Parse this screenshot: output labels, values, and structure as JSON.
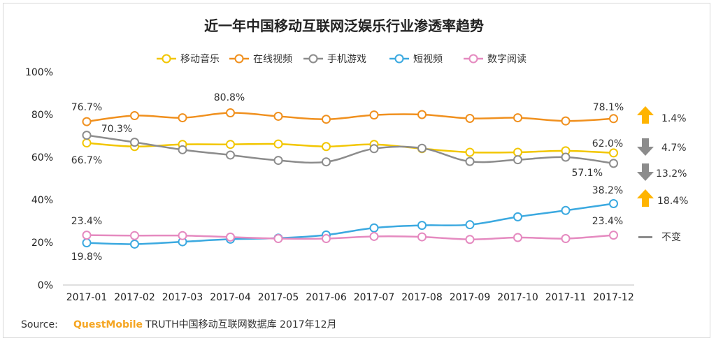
{
  "chart_data": {
    "type": "line",
    "title": "近一年中国移动互联网泛娱乐行业渗透率趋势",
    "categories": [
      "2017-01",
      "2017-02",
      "2017-03",
      "2017-04",
      "2017-05",
      "2017-06",
      "2017-07",
      "2017-08",
      "2017-09",
      "2017-10",
      "2017-11",
      "2017-12"
    ],
    "ylim": [
      0,
      100
    ],
    "yticks": [
      "0%",
      "20%",
      "40%",
      "60%",
      "80%",
      "100%"
    ],
    "legend_position": "top-center",
    "series": [
      {
        "key": "music",
        "name": "移动音乐",
        "color": "#F2C600",
        "values": [
          66.7,
          65.0,
          66.0,
          66.0,
          66.2,
          65.0,
          66.0,
          64.0,
          62.3,
          62.3,
          63.0,
          62.0
        ]
      },
      {
        "key": "video",
        "name": "在线视频",
        "color": "#F0901E",
        "values": [
          76.7,
          79.5,
          78.5,
          80.8,
          79.2,
          77.8,
          79.8,
          80.0,
          78.2,
          78.5,
          77.0,
          78.1
        ]
      },
      {
        "key": "game",
        "name": "手机游戏",
        "color": "#8C8C8C",
        "values": [
          70.3,
          67.0,
          63.5,
          61.0,
          58.5,
          57.8,
          64.0,
          64.2,
          58.0,
          58.8,
          60.0,
          57.1
        ]
      },
      {
        "key": "short",
        "name": "短视频",
        "color": "#3BA9E0",
        "values": [
          19.8,
          19.2,
          20.3,
          21.5,
          22.0,
          23.5,
          26.8,
          28.0,
          28.3,
          32.0,
          35.0,
          38.2
        ]
      },
      {
        "key": "reading",
        "name": "数字阅读",
        "color": "#E58AC0",
        "values": [
          23.4,
          23.2,
          23.2,
          22.5,
          21.8,
          21.8,
          22.8,
          22.6,
          21.4,
          22.3,
          21.8,
          23.4
        ]
      }
    ],
    "annotations": {
      "video_start": "76.7%",
      "video_peak": "80.8%",
      "video_end": "78.1%",
      "game_start": "70.3%",
      "game_end": "57.1%",
      "music_start": "66.7%",
      "music_end": "62.0%",
      "short_start": "19.8%",
      "short_end": "38.2%",
      "reading_start": "23.4%",
      "reading_end": "23.4%"
    }
  },
  "side_legend": [
    {
      "direction": "up",
      "value": "1.4%",
      "color": "#FFB400"
    },
    {
      "direction": "down",
      "value": "4.7%",
      "color": "#8C8C8C"
    },
    {
      "direction": "down",
      "value": "13.2%",
      "color": "#8C8C8C"
    },
    {
      "direction": "up",
      "value": "18.4%",
      "color": "#FFB400"
    },
    {
      "direction": "same",
      "value": "不变",
      "color": "#8C8C8C"
    }
  ],
  "source": {
    "label": "Source:",
    "brand": "QuestMobile",
    "text": "TRUTH中国移动互联网数据库 2017年12月"
  }
}
